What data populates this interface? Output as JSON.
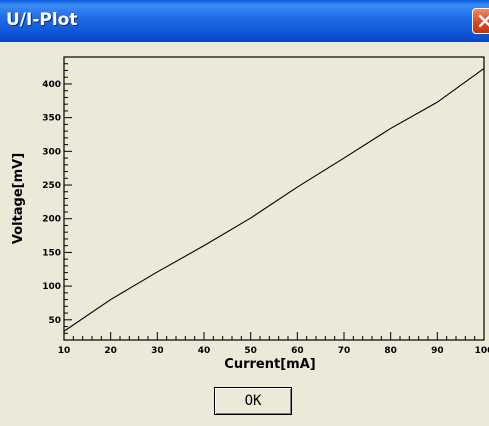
{
  "window": {
    "title": "U/I-Plot",
    "ok_label": "OK"
  },
  "colors": {
    "titlebar": "#1e6be6",
    "close_button": "#d8421e",
    "background": "#ece9d8",
    "line": "#000000"
  },
  "icons": [
    "close-icon"
  ],
  "chart_data": {
    "type": "line",
    "xlabel": "Current[mA]",
    "ylabel": "Voltage[mV]",
    "xlim": [
      10,
      100
    ],
    "ylim": [
      20,
      440
    ],
    "xticks": [
      10,
      20,
      30,
      40,
      50,
      60,
      70,
      80,
      90,
      100
    ],
    "yticks": [
      50,
      100,
      150,
      200,
      250,
      300,
      350,
      400
    ],
    "x": [
      10,
      20,
      30,
      40,
      50,
      60,
      70,
      80,
      90,
      100
    ],
    "y": [
      33,
      80,
      121,
      160,
      201,
      247,
      290,
      334,
      373,
      423
    ],
    "grid": false
  }
}
